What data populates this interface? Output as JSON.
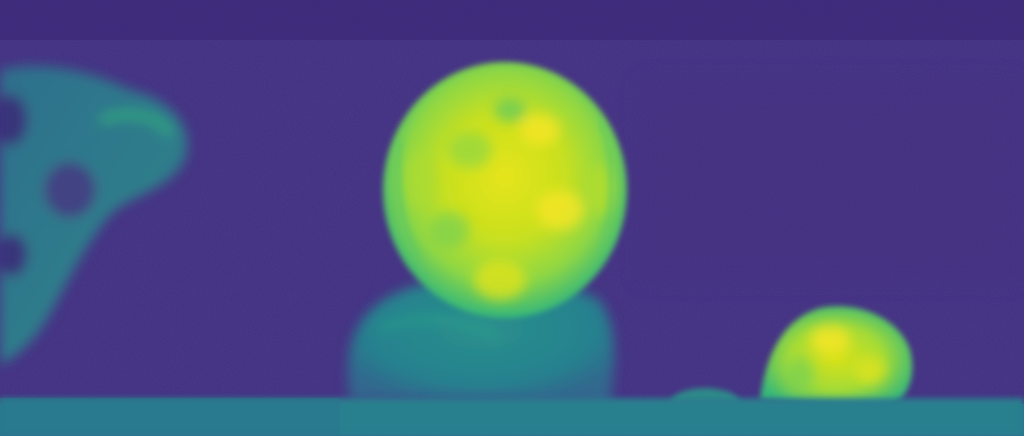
{
  "image": {
    "colormap": "viridis",
    "colors": {
      "background": "#3f2d7f",
      "background_dark": "#382070",
      "background_mid": "#44307f",
      "low": "#3b528b",
      "mid_low": "#2c728e",
      "mid": "#21918c",
      "mid_high": "#28ae80",
      "high": "#5ec962",
      "very_high": "#addc30",
      "peak": "#fde725"
    },
    "regions": [
      {
        "name": "left-figure",
        "level": 0.45
      },
      {
        "name": "center-head",
        "level": 0.9
      },
      {
        "name": "center-torso",
        "level": 0.5
      },
      {
        "name": "right-small-head",
        "level": 0.85
      },
      {
        "name": "bottom-strip",
        "level": 0.4
      }
    ]
  }
}
